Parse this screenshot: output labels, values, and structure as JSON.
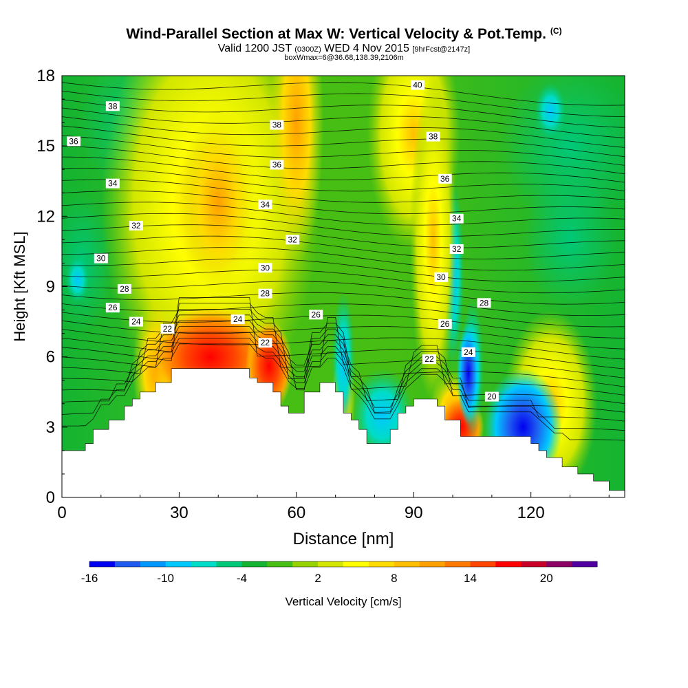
{
  "header": {
    "title": "Wind-Parallel Section at Max W: Vertical Velocity & Pot.Temp.",
    "copyright": "(C)",
    "valid_main": "Valid 1200 JST",
    "valid_utc": "(0300Z)",
    "valid_date": "WED 4 Nov 2015",
    "forecast": "[9hrFcst@2147z]",
    "box_info": "boxWmax=6@36.68,138.39,2106m"
  },
  "chart_data": {
    "type": "heatmap",
    "xlabel": "Distance [nm]",
    "ylabel": "Height [Kft MSL]",
    "xlim": [
      0,
      144
    ],
    "ylim": [
      0,
      18
    ],
    "x_ticks": [
      0,
      30,
      60,
      90,
      120
    ],
    "y_ticks": [
      0,
      3,
      6,
      9,
      12,
      15,
      18
    ],
    "colorbar": {
      "label": "Vertical Velocity [cm/s]",
      "tick_labels": [
        "-16",
        "-10",
        "-4",
        "2",
        "8",
        "14",
        "20"
      ],
      "tick_values": [
        -16,
        -10,
        -4,
        2,
        8,
        14,
        20
      ],
      "range": [
        -16,
        24
      ],
      "colors": [
        "#0000f0",
        "#1e5af0",
        "#0096ff",
        "#00c8ff",
        "#00dcc8",
        "#00c878",
        "#14b432",
        "#46be14",
        "#96d200",
        "#d2e600",
        "#ffff00",
        "#ffdc00",
        "#ffbe00",
        "#ffa000",
        "#ff7800",
        "#ff4600",
        "#ff0000",
        "#c80028",
        "#8c0064",
        "#5000a0"
      ]
    },
    "terrain": {
      "description_free": true,
      "x": [
        0,
        2,
        4,
        6,
        8,
        10,
        12,
        14,
        16,
        18,
        20,
        22,
        24,
        26,
        28,
        30,
        32,
        34,
        36,
        38,
        40,
        42,
        44,
        46,
        48,
        50,
        52,
        54,
        56,
        58,
        60,
        62,
        64,
        66,
        68,
        70,
        72,
        74,
        76,
        78,
        80,
        82,
        84,
        86,
        88,
        90,
        92,
        94,
        96,
        98,
        100,
        102,
        104,
        106,
        108,
        110,
        112,
        114,
        116,
        118,
        120,
        122,
        124,
        126,
        128,
        130,
        132,
        134,
        136,
        138,
        140,
        142,
        144
      ],
      "height": [
        2.0,
        2.0,
        2.0,
        2.3,
        2.9,
        2.9,
        3.3,
        3.3,
        3.9,
        4.2,
        4.5,
        4.5,
        4.9,
        4.9,
        5.5,
        5.5,
        5.5,
        5.5,
        5.5,
        5.5,
        5.5,
        5.5,
        5.5,
        5.5,
        5.1,
        4.9,
        4.9,
        4.5,
        3.9,
        3.6,
        3.6,
        4.5,
        4.5,
        4.9,
        4.9,
        4.5,
        3.6,
        3.3,
        2.9,
        2.3,
        2.3,
        2.3,
        2.9,
        3.6,
        3.9,
        4.2,
        4.2,
        4.2,
        3.9,
        3.3,
        3.3,
        2.6,
        2.6,
        2.6,
        2.6,
        2.6,
        2.6,
        2.6,
        2.6,
        2.6,
        2.3,
        2.0,
        1.7,
        1.7,
        1.3,
        1.3,
        1.0,
        1.0,
        0.7,
        0.7,
        0.3,
        0.3,
        0.3
      ]
    },
    "contour_labels": [
      {
        "text": "40",
        "x": 91,
        "y": 17.6
      },
      {
        "text": "38",
        "x": 13,
        "y": 16.7
      },
      {
        "text": "38",
        "x": 55,
        "y": 15.9
      },
      {
        "text": "38",
        "x": 95,
        "y": 15.4
      },
      {
        "text": "36",
        "x": 3,
        "y": 15.2
      },
      {
        "text": "36",
        "x": 55,
        "y": 14.2
      },
      {
        "text": "36",
        "x": 98,
        "y": 13.6
      },
      {
        "text": "34",
        "x": 13,
        "y": 13.4
      },
      {
        "text": "34",
        "x": 52,
        "y": 12.5
      },
      {
        "text": "34",
        "x": 101,
        "y": 11.9
      },
      {
        "text": "32",
        "x": 19,
        "y": 11.6
      },
      {
        "text": "32",
        "x": 59,
        "y": 11.0
      },
      {
        "text": "32",
        "x": 101,
        "y": 10.6
      },
      {
        "text": "30",
        "x": 10,
        "y": 10.2
      },
      {
        "text": "30",
        "x": 52,
        "y": 9.8
      },
      {
        "text": "30",
        "x": 97,
        "y": 9.4
      },
      {
        "text": "28",
        "x": 16,
        "y": 8.9
      },
      {
        "text": "28",
        "x": 52,
        "y": 8.7
      },
      {
        "text": "28",
        "x": 108,
        "y": 8.3
      },
      {
        "text": "26",
        "x": 13,
        "y": 8.1
      },
      {
        "text": "26",
        "x": 65,
        "y": 7.8
      },
      {
        "text": "26",
        "x": 98,
        "y": 7.4
      },
      {
        "text": "24",
        "x": 19,
        "y": 7.5
      },
      {
        "text": "24",
        "x": 45,
        "y": 7.6
      },
      {
        "text": "24",
        "x": 104,
        "y": 6.2
      },
      {
        "text": "22",
        "x": 27,
        "y": 7.2
      },
      {
        "text": "22",
        "x": 52,
        "y": 6.6
      },
      {
        "text": "22",
        "x": 94,
        "y": 5.9
      },
      {
        "text": "20",
        "x": 110,
        "y": 4.3
      }
    ]
  }
}
